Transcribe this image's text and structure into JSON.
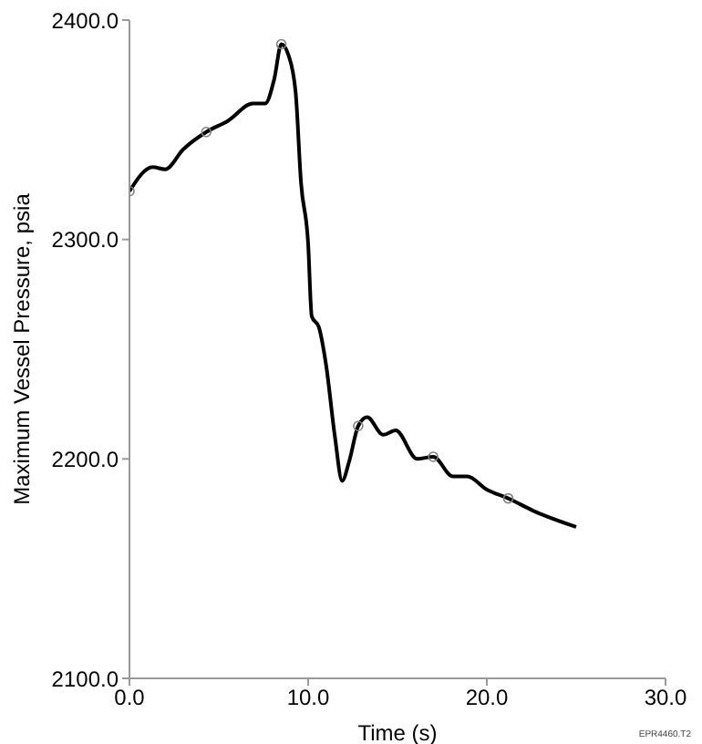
{
  "chart_data": {
    "type": "line",
    "xlabel": "Time (s)",
    "ylabel": "Maximum Vessel Pressure, psia",
    "xlim": [
      0,
      30
    ],
    "xticks": [
      {
        "value": 0,
        "label": "0.0"
      },
      {
        "value": 10,
        "label": "10.0"
      },
      {
        "value": 20,
        "label": "20.0"
      },
      {
        "value": 30,
        "label": "30.0"
      }
    ],
    "ylim": [
      2100,
      2400
    ],
    "yticks": [
      {
        "value": 2100,
        "label": "2100.0"
      },
      {
        "value": 2200,
        "label": "2200.0"
      },
      {
        "value": 2300,
        "label": "2300.0"
      },
      {
        "value": 2400,
        "label": "2400.0"
      }
    ],
    "series": [
      {
        "color": "#000000",
        "marker": "none",
        "x": [
          0,
          1.3,
          2,
          3,
          4.3,
          5.5,
          6.9,
          7.6,
          8.1,
          8.5,
          8.9,
          9.3,
          9.6,
          10,
          10.2,
          10.6,
          11,
          11.5,
          11.9,
          12.3,
          12.8,
          13.3,
          14.2,
          14.9,
          16.1,
          17,
          18.1,
          18.9,
          20,
          21.2,
          22.7,
          25
        ],
        "values": [
          2322,
          2333,
          2332,
          2341,
          2349,
          2354,
          2362,
          2362,
          2373,
          2389,
          2384,
          2367,
          2326,
          2298,
          2265,
          2260,
          2243,
          2210,
          2190,
          2199,
          2215,
          2219,
          2211,
          2213,
          2200,
          2201,
          2192,
          2192,
          2186,
          2182,
          2176,
          2169
        ]
      },
      {
        "type": "scatter",
        "color": "#808080",
        "marker": "circle",
        "x": [
          0,
          4.3,
          8.5,
          12.8,
          17,
          21.2
        ],
        "values": [
          2322,
          2349,
          2389,
          2215,
          2201,
          2182
        ]
      }
    ],
    "annotations": [
      "EPR4460.T2"
    ]
  }
}
